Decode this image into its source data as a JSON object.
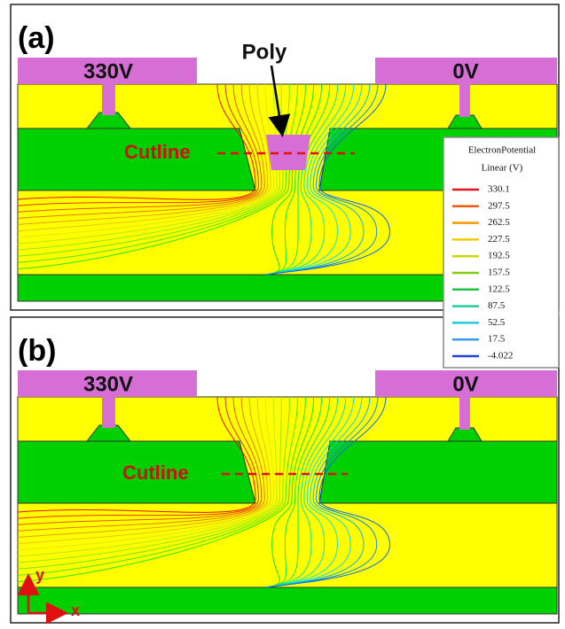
{
  "panels": [
    {
      "label": "(a)",
      "left_contact": "330V",
      "right_contact": "0V",
      "poly_label": "Poly",
      "cutline_label": "Cutline"
    },
    {
      "label": "(b)",
      "left_contact": "330V",
      "right_contact": "0V",
      "cutline_label": "Cutline",
      "axes": {
        "y": "y",
        "x": "x"
      }
    }
  ],
  "legend": {
    "title": "ElectronPotential",
    "subtitle": "Linear (V)",
    "entries": [
      {
        "value": 330.1,
        "color": "#e8141e"
      },
      {
        "value": 297.5,
        "color": "#f25a0a"
      },
      {
        "value": 262.5,
        "color": "#f39a00"
      },
      {
        "value": 227.5,
        "color": "#f0cc00"
      },
      {
        "value": 192.5,
        "color": "#c6dc00"
      },
      {
        "value": 157.5,
        "color": "#84cc10"
      },
      {
        "value": 122.5,
        "color": "#24c040"
      },
      {
        "value": 87.5,
        "color": "#20cc9c"
      },
      {
        "value": 52.5,
        "color": "#22cce0"
      },
      {
        "value": 17.5,
        "color": "#3c98ee"
      },
      {
        "value": -4.022,
        "color": "#2040e0"
      }
    ]
  }
}
